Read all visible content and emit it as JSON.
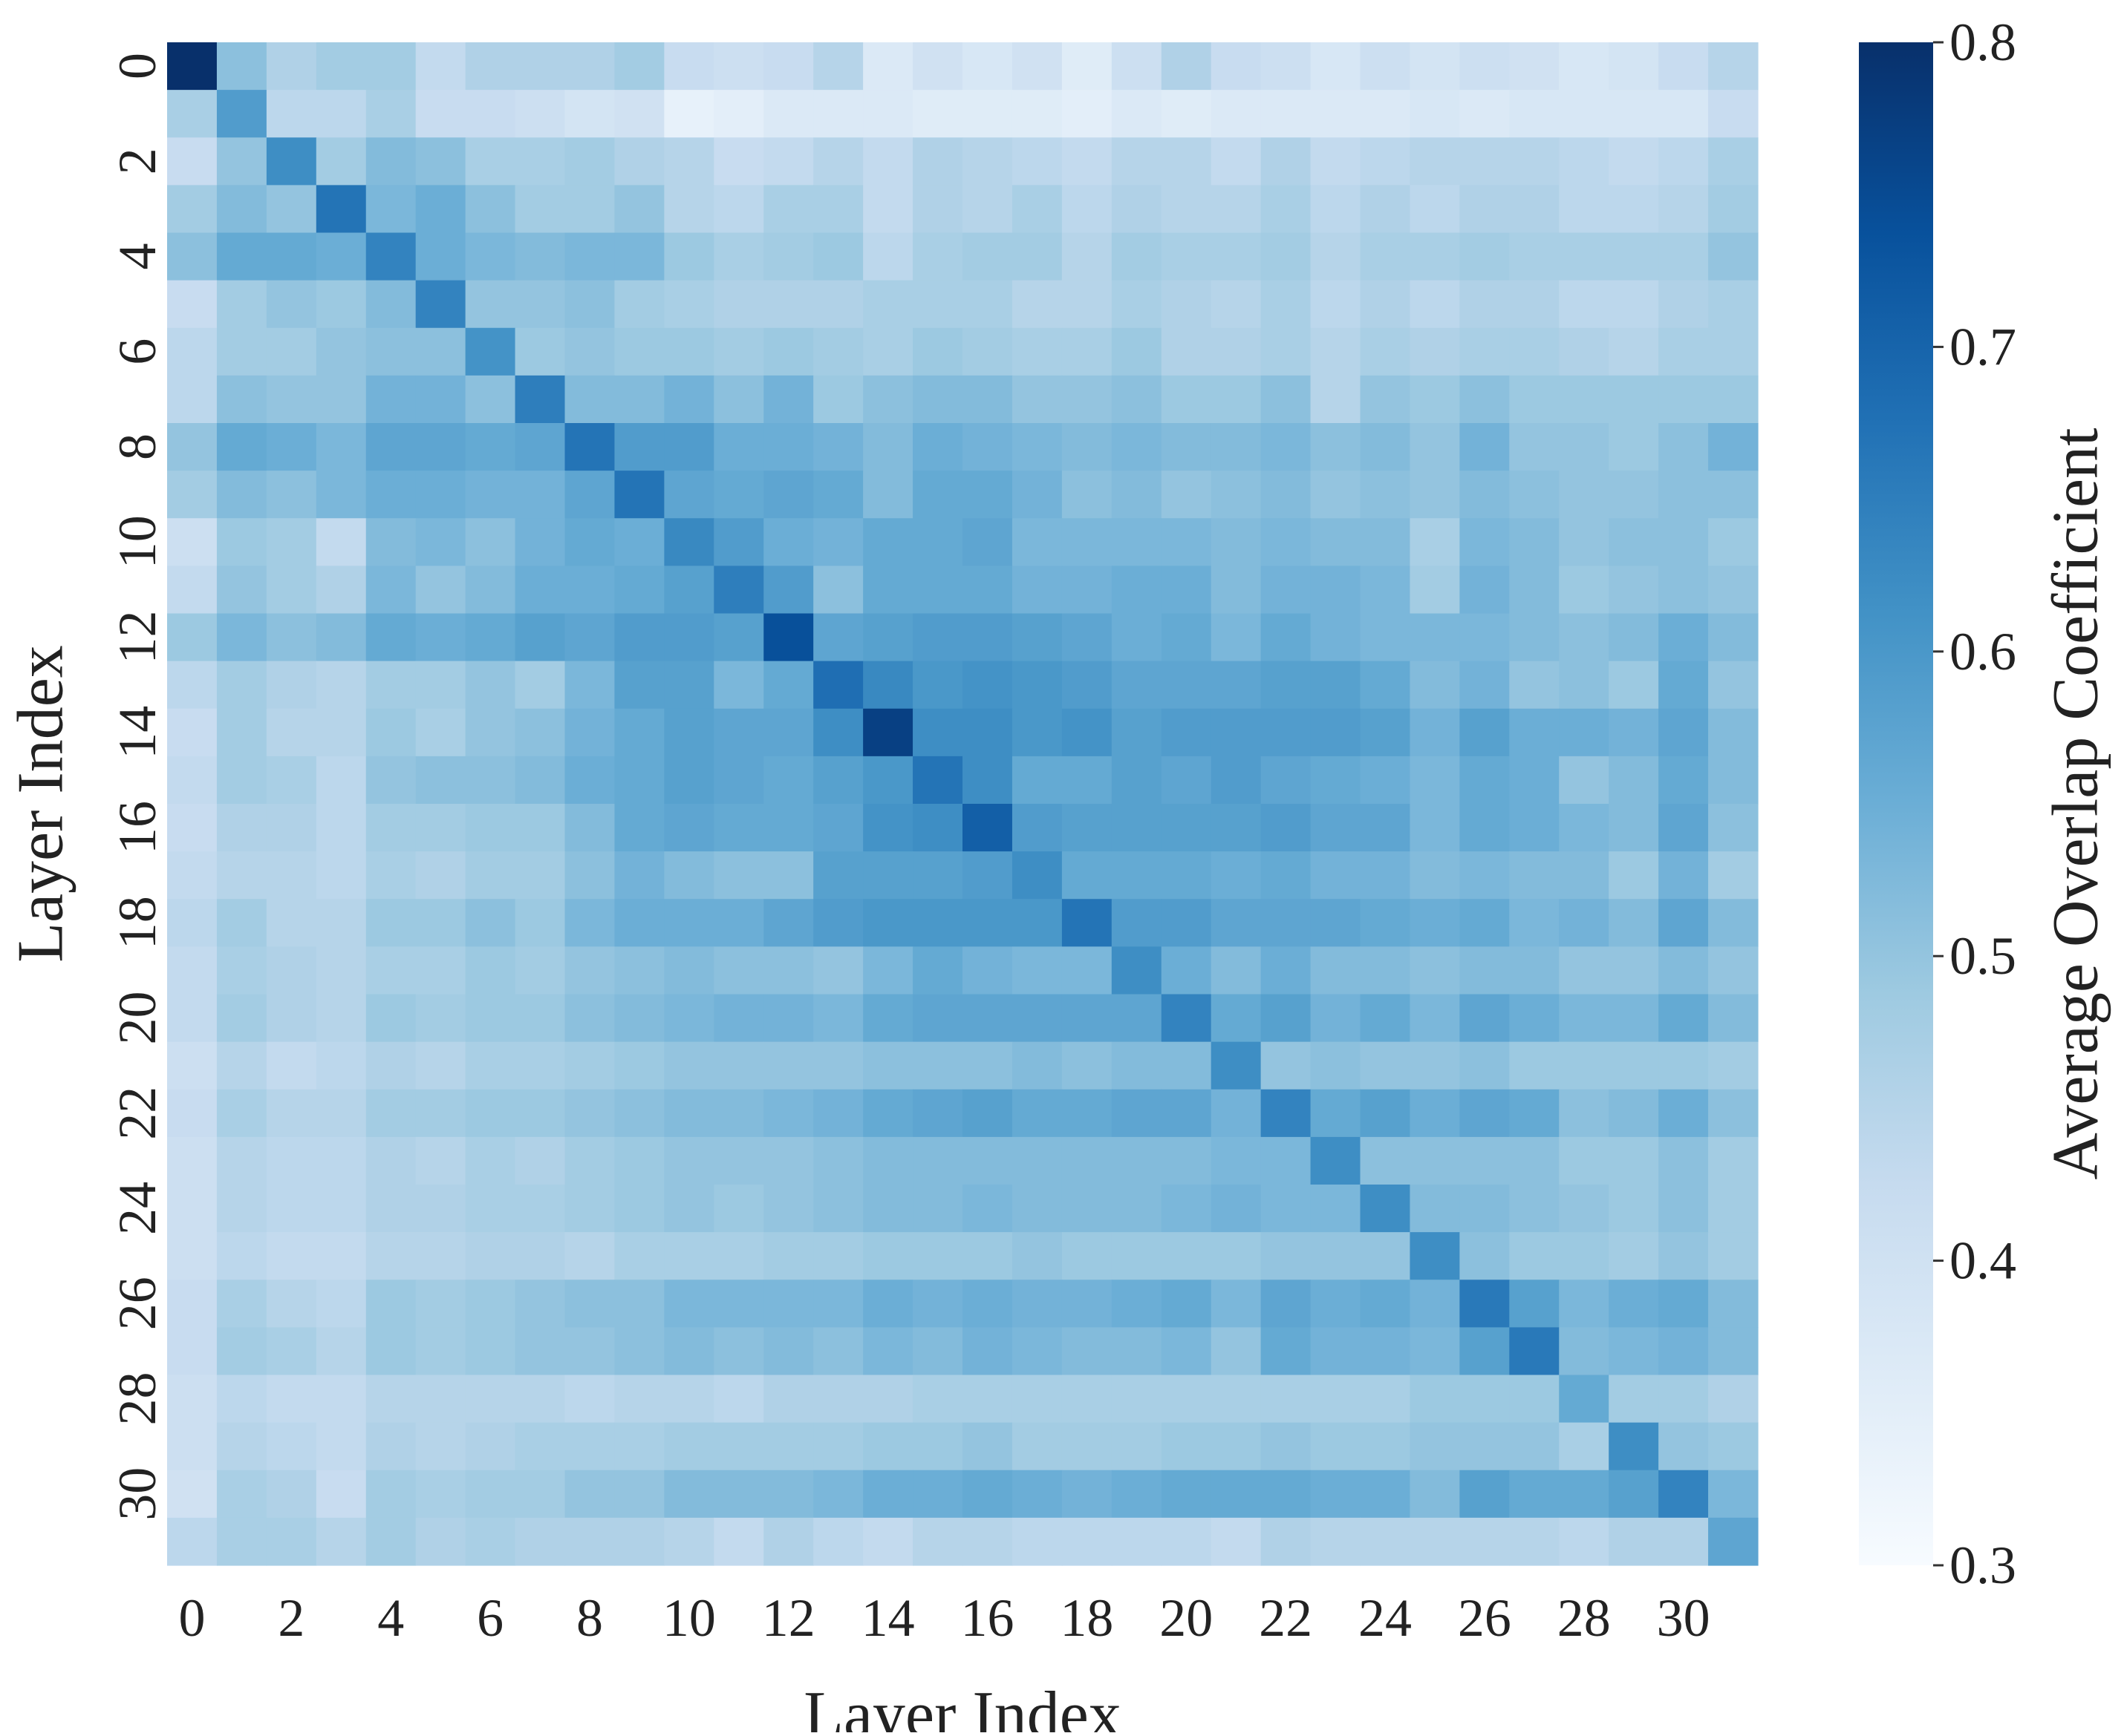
{
  "chart_data": {
    "type": "heatmap",
    "title": "",
    "xlabel": "Layer Index",
    "ylabel": "Layer Index",
    "n_layers": 32,
    "x_tick_labels": [
      "0",
      "2",
      "4",
      "6",
      "8",
      "10",
      "12",
      "14",
      "16",
      "18",
      "20",
      "22",
      "24",
      "26",
      "28",
      "30"
    ],
    "y_tick_labels": [
      "0",
      "2",
      "4",
      "6",
      "8",
      "10",
      "12",
      "14",
      "16",
      "18",
      "20",
      "22",
      "24",
      "26",
      "28",
      "30"
    ],
    "colorbar": {
      "label": "Average Overlap Coefficient",
      "vmin": 0.3,
      "vmax": 0.8,
      "tick_labels": [
        "0.3",
        "0.4",
        "0.5",
        "0.6",
        "0.7",
        "0.8"
      ],
      "colormap": "Blues",
      "color_stops": [
        "#f7fbff",
        "#deebf7",
        "#c6dbef",
        "#9ecae1",
        "#6baed6",
        "#4292c6",
        "#2171b5",
        "#08519c",
        "#08306b"
      ]
    },
    "grid": false,
    "values": [
      [
        0.8,
        0.51,
        0.46,
        0.48,
        0.48,
        0.43,
        0.46,
        0.46,
        0.46,
        0.48,
        0.42,
        0.41,
        0.42,
        0.45,
        0.37,
        0.4,
        0.38,
        0.4,
        0.36,
        0.41,
        0.46,
        0.42,
        0.41,
        0.38,
        0.41,
        0.39,
        0.41,
        0.4,
        0.38,
        0.39,
        0.42,
        0.45
      ],
      [
        0.47,
        0.59,
        0.44,
        0.44,
        0.47,
        0.42,
        0.42,
        0.41,
        0.39,
        0.4,
        0.34,
        0.35,
        0.37,
        0.37,
        0.37,
        0.36,
        0.36,
        0.36,
        0.35,
        0.37,
        0.36,
        0.37,
        0.37,
        0.37,
        0.37,
        0.38,
        0.37,
        0.38,
        0.38,
        0.38,
        0.38,
        0.42
      ],
      [
        0.42,
        0.5,
        0.62,
        0.48,
        0.52,
        0.51,
        0.47,
        0.47,
        0.48,
        0.46,
        0.45,
        0.42,
        0.43,
        0.45,
        0.43,
        0.46,
        0.45,
        0.44,
        0.43,
        0.45,
        0.45,
        0.43,
        0.46,
        0.43,
        0.44,
        0.45,
        0.45,
        0.45,
        0.44,
        0.43,
        0.44,
        0.47
      ],
      [
        0.48,
        0.52,
        0.5,
        0.67,
        0.53,
        0.55,
        0.51,
        0.48,
        0.48,
        0.5,
        0.45,
        0.44,
        0.47,
        0.47,
        0.43,
        0.46,
        0.45,
        0.47,
        0.44,
        0.46,
        0.45,
        0.45,
        0.47,
        0.44,
        0.46,
        0.44,
        0.46,
        0.46,
        0.44,
        0.44,
        0.45,
        0.48
      ],
      [
        0.51,
        0.56,
        0.56,
        0.55,
        0.64,
        0.55,
        0.53,
        0.52,
        0.53,
        0.53,
        0.49,
        0.47,
        0.48,
        0.49,
        0.44,
        0.47,
        0.48,
        0.48,
        0.45,
        0.48,
        0.47,
        0.47,
        0.48,
        0.45,
        0.47,
        0.47,
        0.48,
        0.47,
        0.47,
        0.47,
        0.47,
        0.5
      ],
      [
        0.42,
        0.48,
        0.5,
        0.49,
        0.52,
        0.64,
        0.5,
        0.5,
        0.51,
        0.48,
        0.47,
        0.46,
        0.46,
        0.46,
        0.47,
        0.47,
        0.47,
        0.45,
        0.45,
        0.47,
        0.46,
        0.45,
        0.47,
        0.44,
        0.46,
        0.44,
        0.46,
        0.46,
        0.44,
        0.44,
        0.46,
        0.47
      ],
      [
        0.44,
        0.48,
        0.48,
        0.5,
        0.51,
        0.51,
        0.61,
        0.49,
        0.5,
        0.49,
        0.49,
        0.48,
        0.49,
        0.48,
        0.47,
        0.49,
        0.48,
        0.47,
        0.47,
        0.49,
        0.46,
        0.46,
        0.47,
        0.45,
        0.47,
        0.46,
        0.47,
        0.47,
        0.46,
        0.45,
        0.47,
        0.47
      ],
      [
        0.44,
        0.51,
        0.5,
        0.5,
        0.54,
        0.54,
        0.51,
        0.65,
        0.52,
        0.52,
        0.54,
        0.51,
        0.54,
        0.49,
        0.51,
        0.52,
        0.52,
        0.5,
        0.5,
        0.51,
        0.49,
        0.49,
        0.51,
        0.45,
        0.5,
        0.49,
        0.51,
        0.49,
        0.49,
        0.49,
        0.49,
        0.49
      ],
      [
        0.5,
        0.56,
        0.55,
        0.53,
        0.57,
        0.57,
        0.56,
        0.57,
        0.67,
        0.59,
        0.59,
        0.55,
        0.55,
        0.54,
        0.52,
        0.55,
        0.54,
        0.53,
        0.52,
        0.53,
        0.52,
        0.52,
        0.53,
        0.51,
        0.52,
        0.5,
        0.54,
        0.5,
        0.5,
        0.49,
        0.51,
        0.54
      ],
      [
        0.48,
        0.52,
        0.51,
        0.53,
        0.55,
        0.55,
        0.54,
        0.54,
        0.57,
        0.67,
        0.57,
        0.56,
        0.57,
        0.56,
        0.52,
        0.56,
        0.56,
        0.54,
        0.51,
        0.52,
        0.5,
        0.51,
        0.52,
        0.5,
        0.51,
        0.5,
        0.52,
        0.51,
        0.5,
        0.5,
        0.51,
        0.51
      ],
      [
        0.41,
        0.49,
        0.48,
        0.43,
        0.52,
        0.53,
        0.51,
        0.54,
        0.56,
        0.55,
        0.63,
        0.59,
        0.55,
        0.54,
        0.56,
        0.56,
        0.57,
        0.53,
        0.53,
        0.53,
        0.53,
        0.52,
        0.53,
        0.52,
        0.52,
        0.47,
        0.53,
        0.52,
        0.5,
        0.51,
        0.51,
        0.49
      ],
      [
        0.43,
        0.5,
        0.48,
        0.46,
        0.53,
        0.5,
        0.52,
        0.55,
        0.55,
        0.56,
        0.58,
        0.65,
        0.59,
        0.51,
        0.56,
        0.56,
        0.56,
        0.54,
        0.54,
        0.55,
        0.55,
        0.52,
        0.54,
        0.54,
        0.53,
        0.48,
        0.54,
        0.52,
        0.49,
        0.5,
        0.51,
        0.5
      ],
      [
        0.49,
        0.53,
        0.51,
        0.52,
        0.56,
        0.55,
        0.56,
        0.58,
        0.57,
        0.59,
        0.59,
        0.58,
        0.74,
        0.57,
        0.58,
        0.59,
        0.59,
        0.58,
        0.57,
        0.55,
        0.56,
        0.53,
        0.56,
        0.54,
        0.53,
        0.53,
        0.53,
        0.52,
        0.51,
        0.52,
        0.55,
        0.52
      ],
      [
        0.44,
        0.48,
        0.46,
        0.45,
        0.48,
        0.48,
        0.5,
        0.48,
        0.53,
        0.58,
        0.58,
        0.53,
        0.56,
        0.68,
        0.63,
        0.6,
        0.61,
        0.6,
        0.59,
        0.57,
        0.57,
        0.57,
        0.58,
        0.58,
        0.56,
        0.52,
        0.54,
        0.5,
        0.51,
        0.49,
        0.56,
        0.5
      ],
      [
        0.42,
        0.48,
        0.45,
        0.45,
        0.49,
        0.47,
        0.5,
        0.51,
        0.54,
        0.56,
        0.58,
        0.57,
        0.57,
        0.62,
        0.77,
        0.62,
        0.62,
        0.6,
        0.61,
        0.58,
        0.59,
        0.59,
        0.59,
        0.59,
        0.58,
        0.54,
        0.58,
        0.55,
        0.55,
        0.54,
        0.57,
        0.52
      ],
      [
        0.43,
        0.48,
        0.47,
        0.44,
        0.5,
        0.51,
        0.51,
        0.52,
        0.55,
        0.56,
        0.58,
        0.57,
        0.56,
        0.58,
        0.6,
        0.67,
        0.62,
        0.56,
        0.56,
        0.58,
        0.57,
        0.59,
        0.57,
        0.56,
        0.55,
        0.53,
        0.56,
        0.55,
        0.5,
        0.52,
        0.56,
        0.52
      ],
      [
        0.42,
        0.46,
        0.46,
        0.44,
        0.48,
        0.48,
        0.49,
        0.49,
        0.52,
        0.56,
        0.57,
        0.56,
        0.56,
        0.57,
        0.61,
        0.62,
        0.71,
        0.59,
        0.58,
        0.58,
        0.58,
        0.58,
        0.59,
        0.57,
        0.57,
        0.53,
        0.56,
        0.55,
        0.53,
        0.52,
        0.57,
        0.51
      ],
      [
        0.43,
        0.45,
        0.45,
        0.44,
        0.47,
        0.46,
        0.48,
        0.48,
        0.51,
        0.54,
        0.52,
        0.51,
        0.51,
        0.58,
        0.58,
        0.58,
        0.59,
        0.62,
        0.56,
        0.56,
        0.56,
        0.55,
        0.56,
        0.54,
        0.54,
        0.52,
        0.53,
        0.52,
        0.52,
        0.49,
        0.54,
        0.48
      ],
      [
        0.44,
        0.48,
        0.45,
        0.45,
        0.49,
        0.49,
        0.51,
        0.49,
        0.53,
        0.55,
        0.55,
        0.55,
        0.57,
        0.59,
        0.6,
        0.6,
        0.6,
        0.6,
        0.67,
        0.59,
        0.59,
        0.57,
        0.57,
        0.57,
        0.56,
        0.55,
        0.56,
        0.53,
        0.54,
        0.52,
        0.57,
        0.52
      ],
      [
        0.43,
        0.47,
        0.46,
        0.45,
        0.47,
        0.47,
        0.49,
        0.48,
        0.5,
        0.51,
        0.52,
        0.51,
        0.51,
        0.5,
        0.53,
        0.56,
        0.54,
        0.53,
        0.53,
        0.62,
        0.55,
        0.52,
        0.55,
        0.52,
        0.52,
        0.51,
        0.52,
        0.52,
        0.5,
        0.5,
        0.52,
        0.5
      ],
      [
        0.43,
        0.48,
        0.46,
        0.45,
        0.49,
        0.48,
        0.49,
        0.49,
        0.51,
        0.52,
        0.53,
        0.54,
        0.54,
        0.53,
        0.56,
        0.57,
        0.57,
        0.57,
        0.57,
        0.57,
        0.64,
        0.56,
        0.58,
        0.54,
        0.56,
        0.53,
        0.57,
        0.55,
        0.53,
        0.53,
        0.56,
        0.52
      ],
      [
        0.41,
        0.45,
        0.43,
        0.44,
        0.46,
        0.45,
        0.47,
        0.47,
        0.48,
        0.49,
        0.5,
        0.5,
        0.5,
        0.5,
        0.51,
        0.51,
        0.51,
        0.52,
        0.51,
        0.52,
        0.52,
        0.62,
        0.5,
        0.51,
        0.5,
        0.5,
        0.51,
        0.49,
        0.49,
        0.49,
        0.49,
        0.48
      ],
      [
        0.42,
        0.47,
        0.45,
        0.45,
        0.48,
        0.48,
        0.49,
        0.49,
        0.5,
        0.51,
        0.52,
        0.52,
        0.53,
        0.54,
        0.56,
        0.57,
        0.58,
        0.56,
        0.56,
        0.57,
        0.57,
        0.54,
        0.64,
        0.56,
        0.58,
        0.55,
        0.57,
        0.56,
        0.51,
        0.52,
        0.55,
        0.51
      ],
      [
        0.41,
        0.45,
        0.44,
        0.44,
        0.46,
        0.45,
        0.47,
        0.46,
        0.48,
        0.49,
        0.5,
        0.5,
        0.5,
        0.51,
        0.52,
        0.52,
        0.52,
        0.52,
        0.52,
        0.52,
        0.52,
        0.53,
        0.53,
        0.62,
        0.51,
        0.51,
        0.51,
        0.51,
        0.49,
        0.49,
        0.51,
        0.48
      ],
      [
        0.41,
        0.45,
        0.44,
        0.44,
        0.46,
        0.46,
        0.47,
        0.47,
        0.48,
        0.49,
        0.5,
        0.49,
        0.5,
        0.51,
        0.52,
        0.52,
        0.53,
        0.52,
        0.52,
        0.52,
        0.53,
        0.54,
        0.53,
        0.53,
        0.62,
        0.52,
        0.52,
        0.51,
        0.5,
        0.49,
        0.51,
        0.48
      ],
      [
        0.41,
        0.44,
        0.43,
        0.43,
        0.45,
        0.45,
        0.46,
        0.46,
        0.45,
        0.47,
        0.47,
        0.47,
        0.48,
        0.48,
        0.49,
        0.49,
        0.49,
        0.5,
        0.49,
        0.49,
        0.49,
        0.49,
        0.5,
        0.5,
        0.5,
        0.62,
        0.51,
        0.49,
        0.49,
        0.48,
        0.5,
        0.48
      ],
      [
        0.42,
        0.47,
        0.45,
        0.44,
        0.49,
        0.48,
        0.49,
        0.5,
        0.51,
        0.51,
        0.53,
        0.53,
        0.53,
        0.53,
        0.55,
        0.54,
        0.55,
        0.54,
        0.54,
        0.55,
        0.56,
        0.53,
        0.57,
        0.55,
        0.56,
        0.54,
        0.66,
        0.58,
        0.53,
        0.55,
        0.56,
        0.52
      ],
      [
        0.42,
        0.48,
        0.47,
        0.45,
        0.49,
        0.48,
        0.49,
        0.5,
        0.5,
        0.51,
        0.52,
        0.51,
        0.52,
        0.51,
        0.53,
        0.52,
        0.54,
        0.53,
        0.52,
        0.52,
        0.53,
        0.5,
        0.56,
        0.54,
        0.54,
        0.53,
        0.58,
        0.66,
        0.52,
        0.53,
        0.54,
        0.52
      ],
      [
        0.41,
        0.44,
        0.43,
        0.43,
        0.45,
        0.45,
        0.45,
        0.45,
        0.44,
        0.45,
        0.45,
        0.44,
        0.46,
        0.46,
        0.46,
        0.47,
        0.47,
        0.47,
        0.47,
        0.47,
        0.47,
        0.47,
        0.47,
        0.47,
        0.47,
        0.49,
        0.49,
        0.49,
        0.56,
        0.48,
        0.48,
        0.46
      ],
      [
        0.41,
        0.45,
        0.44,
        0.43,
        0.46,
        0.45,
        0.46,
        0.47,
        0.47,
        0.47,
        0.48,
        0.48,
        0.48,
        0.48,
        0.49,
        0.49,
        0.5,
        0.48,
        0.48,
        0.48,
        0.49,
        0.49,
        0.5,
        0.49,
        0.49,
        0.5,
        0.5,
        0.5,
        0.47,
        0.62,
        0.5,
        0.49
      ],
      [
        0.4,
        0.47,
        0.46,
        0.42,
        0.48,
        0.47,
        0.48,
        0.48,
        0.5,
        0.5,
        0.52,
        0.52,
        0.52,
        0.53,
        0.55,
        0.55,
        0.56,
        0.55,
        0.54,
        0.55,
        0.56,
        0.56,
        0.56,
        0.55,
        0.55,
        0.52,
        0.58,
        0.56,
        0.56,
        0.58,
        0.64,
        0.53
      ],
      [
        0.44,
        0.47,
        0.47,
        0.45,
        0.48,
        0.46,
        0.47,
        0.46,
        0.46,
        0.46,
        0.45,
        0.43,
        0.46,
        0.44,
        0.43,
        0.45,
        0.45,
        0.44,
        0.44,
        0.44,
        0.44,
        0.43,
        0.46,
        0.45,
        0.45,
        0.45,
        0.45,
        0.45,
        0.44,
        0.46,
        0.46,
        0.57
      ]
    ]
  }
}
